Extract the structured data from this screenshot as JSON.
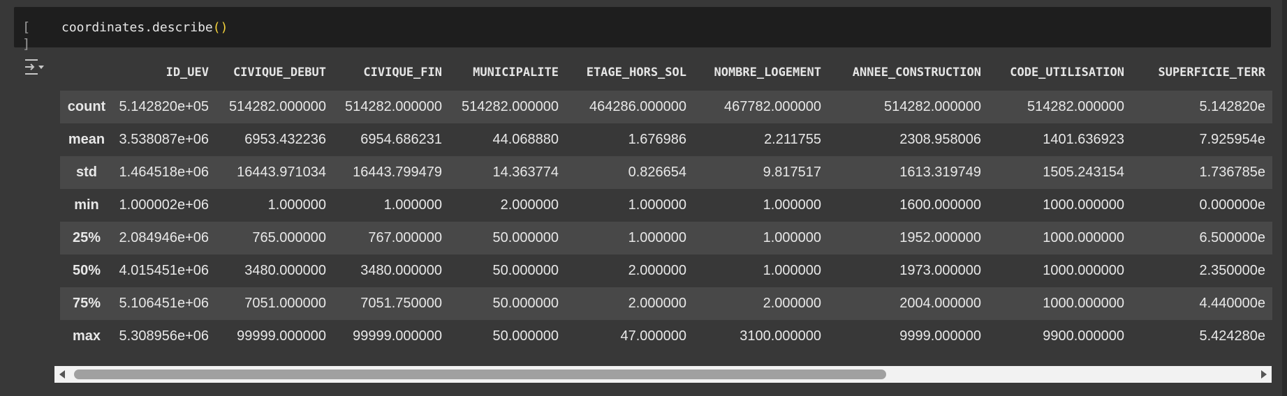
{
  "cell": {
    "run_brackets": "[ ]",
    "code_prefix": "coordinates.describe",
    "code_parens": "()"
  },
  "table": {
    "columns": [
      "",
      "ID_UEV",
      "CIVIQUE_DEBUT",
      "CIVIQUE_FIN",
      "MUNICIPALITE",
      "ETAGE_HORS_SOL",
      "NOMBRE_LOGEMENT",
      "ANNEE_CONSTRUCTION",
      "CODE_UTILISATION",
      "SUPERFICIE_TERR"
    ],
    "rows": [
      [
        "count",
        "5.142820e+05",
        "514282.000000",
        "514282.000000",
        "514282.000000",
        "464286.000000",
        "467782.000000",
        "514282.000000",
        "514282.000000",
        "5.142820e"
      ],
      [
        "mean",
        "3.538087e+06",
        "6953.432236",
        "6954.686231",
        "44.068880",
        "1.676986",
        "2.211755",
        "2308.958006",
        "1401.636923",
        "7.925954e"
      ],
      [
        "std",
        "1.464518e+06",
        "16443.971034",
        "16443.799479",
        "14.363774",
        "0.826654",
        "9.817517",
        "1613.319749",
        "1505.243154",
        "1.736785e"
      ],
      [
        "min",
        "1.000002e+06",
        "1.000000",
        "1.000000",
        "2.000000",
        "1.000000",
        "1.000000",
        "1600.000000",
        "1000.000000",
        "0.000000e"
      ],
      [
        "25%",
        "2.084946e+06",
        "765.000000",
        "767.000000",
        "50.000000",
        "1.000000",
        "1.000000",
        "1952.000000",
        "1000.000000",
        "6.500000e"
      ],
      [
        "50%",
        "4.015451e+06",
        "3480.000000",
        "3480.000000",
        "50.000000",
        "2.000000",
        "1.000000",
        "1973.000000",
        "1000.000000",
        "2.350000e"
      ],
      [
        "75%",
        "5.106451e+06",
        "7051.000000",
        "7051.750000",
        "50.000000",
        "2.000000",
        "2.000000",
        "2004.000000",
        "1000.000000",
        "4.440000e"
      ],
      [
        "max",
        "5.308956e+06",
        "99999.000000",
        "99999.000000",
        "50.000000",
        "47.000000",
        "3100.000000",
        "9999.000000",
        "9900.000000",
        "5.424280e"
      ]
    ]
  },
  "icons": {
    "output_toggle": "output-options-icon",
    "scroll_left": "triangle-left-icon",
    "scroll_right": "triangle-right-icon"
  },
  "colors": {
    "background": "#383838",
    "code_cell_bg": "#1e1e1e",
    "row_alt": "#484848",
    "paren": "#f5d33b"
  }
}
